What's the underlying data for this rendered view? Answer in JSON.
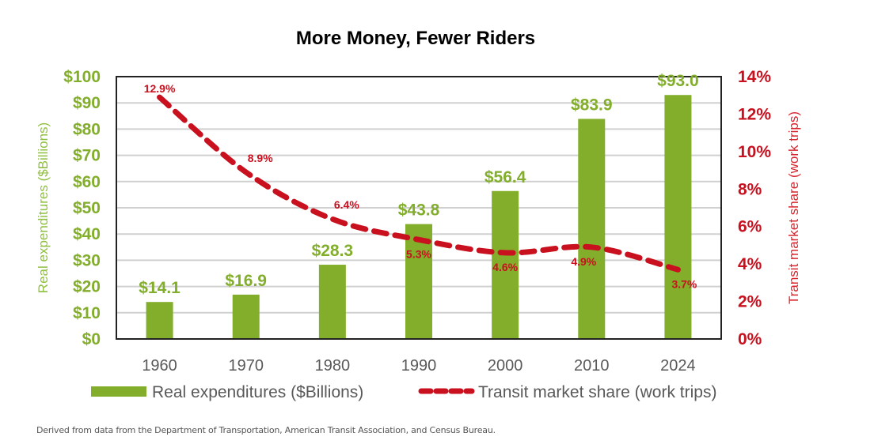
{
  "chart_data": {
    "type": "bar",
    "title": "More Money, Fewer Riders",
    "categories": [
      "1960",
      "1970",
      "1980",
      "1990",
      "2000",
      "2010",
      "2024"
    ],
    "series": [
      {
        "name": "Real expenditures ($Billions)",
        "type": "bar",
        "axis": "left",
        "color": "#82ae2b",
        "values": [
          14.1,
          16.9,
          28.3,
          43.8,
          56.4,
          83.9,
          93.0
        ],
        "labels": [
          "$14.1",
          "$16.9",
          "$28.3",
          "$43.8",
          "$56.4",
          "$83.9",
          "$93.0"
        ]
      },
      {
        "name": "Transit market share (work trips)",
        "type": "line",
        "style": "dashed",
        "axis": "right",
        "color": "#c8101e",
        "values": [
          12.9,
          8.9,
          6.4,
          5.3,
          4.6,
          4.9,
          3.7
        ],
        "labels": [
          "12.9%",
          "8.9%",
          "6.4%",
          "5.3%",
          "4.6%",
          "4.9%",
          "3.7%"
        ]
      }
    ],
    "ylabel": "Real expenditures ($Billions)",
    "ylabel_right": "Transit market share (work trips)",
    "ylim": [
      0,
      100
    ],
    "ylim_right": [
      0,
      14
    ],
    "yticks": [
      "$0",
      "$10",
      "$20",
      "$30",
      "$40",
      "$50",
      "$60",
      "$70",
      "$80",
      "$90",
      "$100"
    ],
    "yticks_right": [
      "0%",
      "2%",
      "4%",
      "6%",
      "8%",
      "10%",
      "12%",
      "14%"
    ],
    "grid": true,
    "legend_placement": "bottom",
    "legend": [
      "Real expenditures ($Billions)",
      "Transit market share (work trips)"
    ]
  },
  "source_note": "Derived from data from the Department of Transportation, American Transit Association, and Census Bureau."
}
